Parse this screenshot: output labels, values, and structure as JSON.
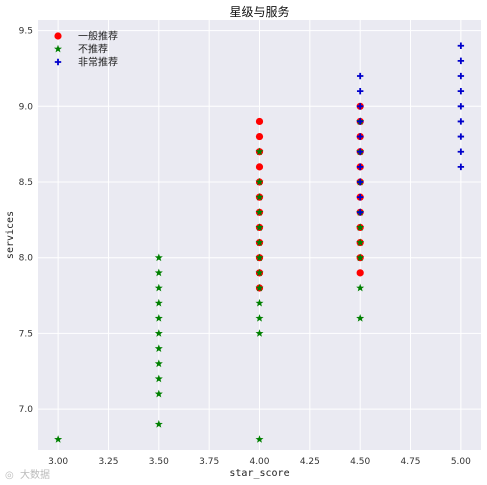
{
  "chart_data": {
    "type": "scatter",
    "title": "星级与服务",
    "xlabel": "star_score",
    "ylabel": "services",
    "xlim": [
      2.9,
      5.1
    ],
    "ylim": [
      6.73,
      9.57
    ],
    "x_ticks": [
      "3.00",
      "3.25",
      "3.50",
      "3.75",
      "4.00",
      "4.25",
      "4.50",
      "4.75",
      "5.00"
    ],
    "y_ticks": [
      "7.0",
      "7.5",
      "8.0",
      "8.5",
      "9.0",
      "9.5"
    ],
    "grid": true,
    "legend_position": "top-left",
    "series": [
      {
        "name": "一般推荐",
        "marker": "circle",
        "color": "#ff0000",
        "points": [
          [
            4.0,
            8.9
          ],
          [
            4.0,
            8.8
          ],
          [
            4.0,
            8.7
          ],
          [
            4.0,
            8.6
          ],
          [
            4.0,
            8.5
          ],
          [
            4.0,
            8.4
          ],
          [
            4.0,
            8.3
          ],
          [
            4.0,
            8.2
          ],
          [
            4.0,
            8.1
          ],
          [
            4.0,
            8.0
          ],
          [
            4.0,
            7.9
          ],
          [
            4.0,
            7.8
          ],
          [
            4.5,
            9.0
          ],
          [
            4.5,
            8.9
          ],
          [
            4.5,
            8.8
          ],
          [
            4.5,
            8.7
          ],
          [
            4.5,
            8.6
          ],
          [
            4.5,
            8.5
          ],
          [
            4.5,
            8.4
          ],
          [
            4.5,
            8.3
          ],
          [
            4.5,
            8.2
          ],
          [
            4.5,
            8.1
          ],
          [
            4.5,
            8.0
          ],
          [
            4.5,
            7.9
          ]
        ]
      },
      {
        "name": "不推荐",
        "marker": "star",
        "color": "#008000",
        "points": [
          [
            3.0,
            6.8
          ],
          [
            3.5,
            8.0
          ],
          [
            3.5,
            7.9
          ],
          [
            3.5,
            7.8
          ],
          [
            3.5,
            7.7
          ],
          [
            3.5,
            7.6
          ],
          [
            3.5,
            7.5
          ],
          [
            3.5,
            7.4
          ],
          [
            3.5,
            7.3
          ],
          [
            3.5,
            7.2
          ],
          [
            3.5,
            7.1
          ],
          [
            3.5,
            6.9
          ],
          [
            4.0,
            8.7
          ],
          [
            4.0,
            8.5
          ],
          [
            4.0,
            8.4
          ],
          [
            4.0,
            8.3
          ],
          [
            4.0,
            8.2
          ],
          [
            4.0,
            8.1
          ],
          [
            4.0,
            8.0
          ],
          [
            4.0,
            7.9
          ],
          [
            4.0,
            7.8
          ],
          [
            4.0,
            7.7
          ],
          [
            4.0,
            7.6
          ],
          [
            4.0,
            7.5
          ],
          [
            4.0,
            6.8
          ],
          [
            4.5,
            8.9
          ],
          [
            4.5,
            8.7
          ],
          [
            4.5,
            8.5
          ],
          [
            4.5,
            8.3
          ],
          [
            4.5,
            8.2
          ],
          [
            4.5,
            8.1
          ],
          [
            4.5,
            8.0
          ],
          [
            4.5,
            7.8
          ],
          [
            4.5,
            7.6
          ]
        ]
      },
      {
        "name": "非常推荐",
        "marker": "plus",
        "color": "#0000cc",
        "points": [
          [
            4.5,
            9.2
          ],
          [
            4.5,
            9.1
          ],
          [
            4.5,
            9.0
          ],
          [
            4.5,
            8.9
          ],
          [
            4.5,
            8.8
          ],
          [
            4.5,
            8.7
          ],
          [
            4.5,
            8.6
          ],
          [
            4.5,
            8.5
          ],
          [
            4.5,
            8.4
          ],
          [
            4.5,
            8.3
          ],
          [
            5.0,
            9.4
          ],
          [
            5.0,
            9.3
          ],
          [
            5.0,
            9.2
          ],
          [
            5.0,
            9.1
          ],
          [
            5.0,
            9.0
          ],
          [
            5.0,
            8.9
          ],
          [
            5.0,
            8.8
          ],
          [
            5.0,
            8.7
          ],
          [
            5.0,
            8.6
          ]
        ]
      }
    ]
  },
  "watermark": {
    "text": "大数据"
  }
}
